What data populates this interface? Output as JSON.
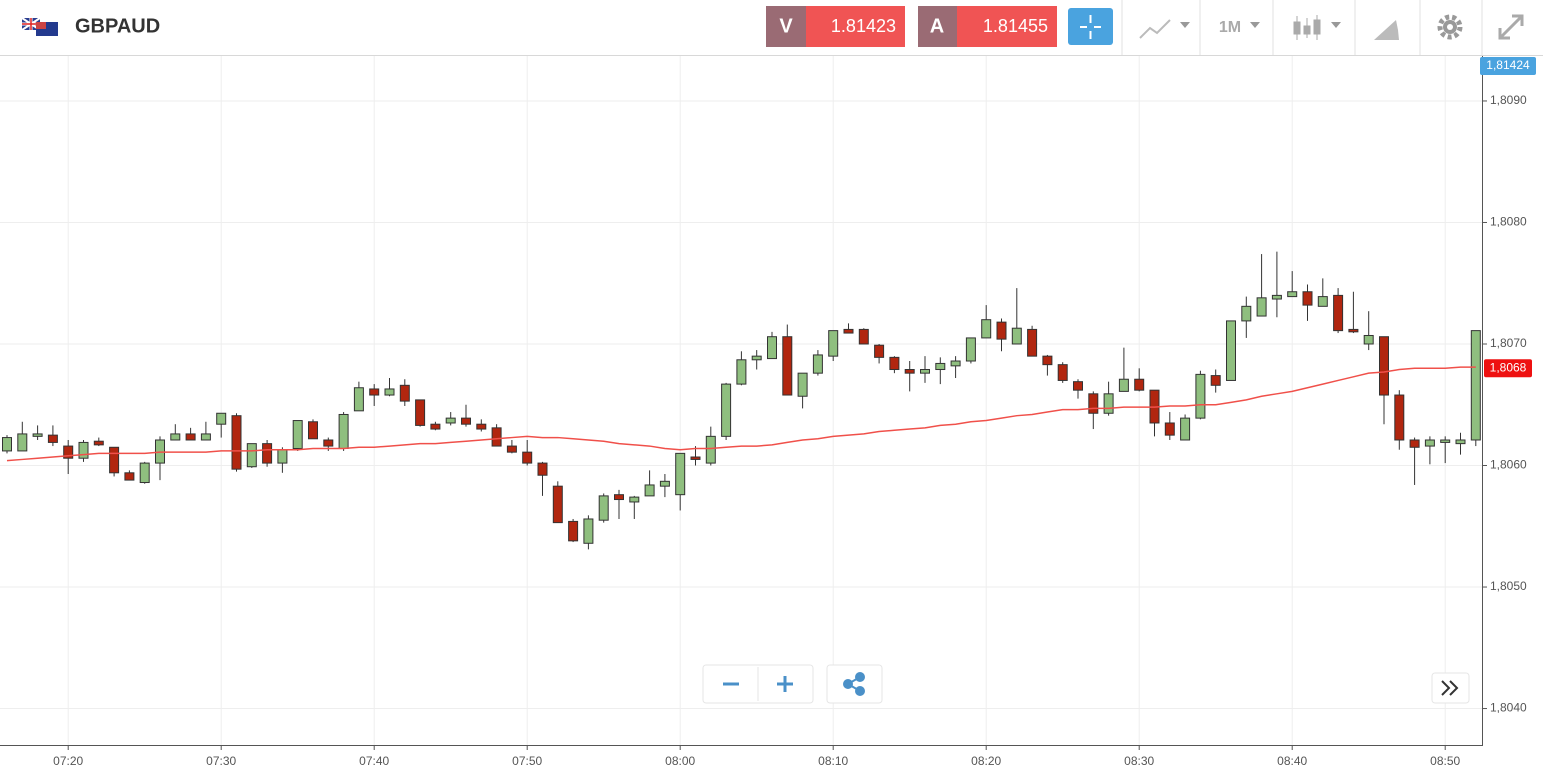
{
  "toolbar": {
    "symbol": "GBPAUD",
    "bid_label": "V",
    "bid": "1.81423",
    "ask_label": "A",
    "ask": "1.81455",
    "timeframe": "1M"
  },
  "chart_data": {
    "type": "candlestick",
    "categories": [
      null,
      null,
      null,
      null,
      "07:20",
      null,
      null,
      null,
      null,
      null,
      null,
      null,
      null,
      null,
      "07:30",
      null,
      null,
      null,
      null,
      null,
      null,
      null,
      null,
      null,
      "07:40",
      null,
      null,
      null,
      null,
      null,
      null,
      null,
      null,
      null,
      "07:50",
      null,
      null,
      null,
      null,
      null,
      null,
      null,
      null,
      null,
      "08:00",
      null,
      null,
      null,
      null,
      null,
      null,
      null,
      null,
      null,
      "08:10",
      null,
      null,
      null,
      null,
      null,
      null,
      null,
      null,
      null,
      "08:20",
      null,
      null,
      null,
      null,
      null,
      null,
      null,
      null,
      null,
      "08:30",
      null,
      null,
      null,
      null,
      null,
      null,
      null,
      null,
      null,
      "08:40",
      null,
      null,
      null,
      null,
      null,
      null,
      null,
      null,
      null,
      "08:50",
      null,
      null
    ],
    "open": [
      1.80612,
      1.80612,
      1.80624,
      1.80625,
      1.80616,
      1.80606,
      1.8062,
      1.80615,
      1.80594,
      1.80586,
      1.80602,
      1.80621,
      1.80626,
      1.80621,
      1.80634,
      1.80641,
      1.80599,
      1.80618,
      1.80602,
      1.80614,
      1.80636,
      1.80621,
      1.80614,
      1.80645,
      1.80663,
      1.80658,
      1.80666,
      1.80654,
      1.80634,
      1.80635,
      1.80639,
      1.80634,
      1.80631,
      1.80616,
      1.80611,
      1.80602,
      1.80583,
      1.80554,
      1.80536,
      1.80555,
      1.80576,
      1.8057,
      1.80575,
      1.80583,
      1.80576,
      1.80607,
      1.80602,
      1.80624,
      1.80667,
      1.80687,
      1.80688,
      1.80706,
      1.80657,
      1.80676,
      1.8069,
      1.80712,
      1.80712,
      1.80699,
      1.80689,
      1.80679,
      1.80676,
      1.80679,
      1.80682,
      1.80686,
      1.80705,
      1.80718,
      1.807,
      1.80712,
      1.8069,
      1.80683,
      1.80669,
      1.80659,
      1.80643,
      1.80661,
      1.80671,
      1.80662,
      1.80635,
      1.80621,
      1.80639,
      1.80674,
      1.8067,
      1.80719,
      1.80723,
      1.80737,
      1.80739,
      1.80743,
      1.80731,
      1.8074,
      1.80712,
      1.807,
      1.80706,
      1.80658,
      1.80621,
      1.80616,
      1.80619,
      1.80618,
      1.80621
    ],
    "high": [
      1.80625,
      1.80636,
      1.80633,
      1.80633,
      1.80621,
      1.80621,
      1.80623,
      1.80615,
      1.80596,
      1.80603,
      1.80624,
      1.80634,
      1.80631,
      1.80636,
      1.80643,
      1.80643,
      1.80618,
      1.80621,
      1.80615,
      1.80637,
      1.80638,
      1.80623,
      1.80644,
      1.80669,
      1.80667,
      1.80672,
      1.80671,
      1.80654,
      1.80636,
      1.80644,
      1.8065,
      1.80638,
      1.80634,
      1.80621,
      1.80621,
      1.80603,
      1.80587,
      1.80556,
      1.80559,
      1.80577,
      1.8058,
      1.80575,
      1.80596,
      1.80593,
      1.8061,
      1.80616,
      1.80632,
      1.80668,
      1.80694,
      1.80695,
      1.8071,
      1.80716,
      1.80676,
      1.80695,
      1.80711,
      1.80717,
      1.80713,
      1.807,
      1.8069,
      1.80686,
      1.8069,
      1.80689,
      1.8069,
      1.80705,
      1.80732,
      1.80721,
      1.80746,
      1.80715,
      1.80691,
      1.80685,
      1.80671,
      1.80661,
      1.80669,
      1.80697,
      1.8068,
      1.80662,
      1.80644,
      1.80642,
      1.80678,
      1.80679,
      1.80719,
      1.80739,
      1.80774,
      1.80776,
      1.8076,
      1.80749,
      1.80754,
      1.80746,
      1.80743,
      1.80727,
      1.80706,
      1.80662,
      1.80623,
      1.80624,
      1.80624,
      1.80627,
      1.80711
    ],
    "low": [
      1.8061,
      1.80612,
      1.80621,
      1.80616,
      1.80593,
      1.80603,
      1.80616,
      1.80591,
      1.80588,
      1.80585,
      1.80588,
      1.80621,
      1.80621,
      1.80621,
      1.80623,
      1.80595,
      1.80598,
      1.80599,
      1.80594,
      1.80612,
      1.80622,
      1.80612,
      1.80612,
      1.80645,
      1.80649,
      1.80657,
      1.80649,
      1.80632,
      1.80629,
      1.80633,
      1.80632,
      1.80628,
      1.80616,
      1.8061,
      1.806,
      1.80575,
      1.80553,
      1.80537,
      1.80531,
      1.80553,
      1.80556,
      1.80556,
      1.80575,
      1.80574,
      1.80563,
      1.806,
      1.806,
      1.80621,
      1.80666,
      1.80679,
      1.80688,
      1.80658,
      1.80647,
      1.80674,
      1.80686,
      1.80709,
      1.807,
      1.80684,
      1.80676,
      1.80661,
      1.80668,
      1.80667,
      1.80672,
      1.80684,
      1.80705,
      1.80694,
      1.807,
      1.8069,
      1.80674,
      1.80668,
      1.80655,
      1.8063,
      1.80641,
      1.80661,
      1.80661,
      1.80624,
      1.80621,
      1.80621,
      1.80638,
      1.8066,
      1.8067,
      1.80705,
      1.80723,
      1.80722,
      1.80739,
      1.80719,
      1.80731,
      1.80709,
      1.80709,
      1.80695,
      1.80634,
      1.80613,
      1.80584,
      1.80601,
      1.80602,
      1.80609,
      1.80616
    ],
    "close": [
      1.80623,
      1.80626,
      1.80626,
      1.80619,
      1.80606,
      1.80619,
      1.80617,
      1.80594,
      1.80588,
      1.80602,
      1.80621,
      1.80626,
      1.80621,
      1.80626,
      1.80643,
      1.80597,
      1.80618,
      1.80602,
      1.80613,
      1.80637,
      1.80622,
      1.80616,
      1.80642,
      1.80664,
      1.80658,
      1.80663,
      1.80653,
      1.80633,
      1.8063,
      1.80639,
      1.80634,
      1.8063,
      1.80616,
      1.80611,
      1.80602,
      1.80592,
      1.80553,
      1.80538,
      1.80556,
      1.80575,
      1.80572,
      1.80574,
      1.80584,
      1.80587,
      1.8061,
      1.80605,
      1.80624,
      1.80667,
      1.80687,
      1.8069,
      1.80706,
      1.80658,
      1.80676,
      1.80691,
      1.80711,
      1.80709,
      1.807,
      1.80689,
      1.80679,
      1.80676,
      1.80679,
      1.80684,
      1.80686,
      1.80705,
      1.8072,
      1.80704,
      1.80713,
      1.8069,
      1.80683,
      1.8067,
      1.80662,
      1.80643,
      1.80659,
      1.80671,
      1.80662,
      1.80635,
      1.80625,
      1.80639,
      1.80675,
      1.80666,
      1.80719,
      1.80731,
      1.80738,
      1.8074,
      1.80743,
      1.80732,
      1.80739,
      1.80711,
      1.8071,
      1.80707,
      1.80658,
      1.80621,
      1.80615,
      1.80621,
      1.80621,
      1.80621,
      1.80711
    ],
    "up_color": "#8fbf7f",
    "down_color": "#b1260f",
    "moving_average": {
      "color": "#f0504a",
      "values": [
        1.80604,
        1.80605,
        1.80606,
        1.80607,
        1.80608,
        1.80609,
        1.8061,
        1.8061,
        1.8061,
        1.8061,
        1.80611,
        1.80611,
        1.80611,
        1.80611,
        1.80612,
        1.80612,
        1.80612,
        1.80613,
        1.80613,
        1.80613,
        1.80614,
        1.80614,
        1.80614,
        1.80615,
        1.80615,
        1.80616,
        1.80617,
        1.80618,
        1.80618,
        1.80619,
        1.8062,
        1.80621,
        1.80622,
        1.80623,
        1.80624,
        1.80623,
        1.80623,
        1.80622,
        1.80621,
        1.8062,
        1.80618,
        1.80617,
        1.80616,
        1.80614,
        1.80613,
        1.80614,
        1.80614,
        1.80615,
        1.80616,
        1.80616,
        1.80617,
        1.80619,
        1.80621,
        1.80622,
        1.80624,
        1.80625,
        1.80626,
        1.80628,
        1.80629,
        1.8063,
        1.80631,
        1.80633,
        1.80634,
        1.80636,
        1.80637,
        1.80639,
        1.80641,
        1.80642,
        1.80644,
        1.80646,
        1.80646,
        1.80647,
        1.80647,
        1.80648,
        1.80648,
        1.80648,
        1.80649,
        1.80649,
        1.8065,
        1.8065,
        1.80652,
        1.80654,
        1.80657,
        1.80659,
        1.80661,
        1.80664,
        1.80667,
        1.8067,
        1.80673,
        1.80676,
        1.80677,
        1.80679,
        1.8068,
        1.8068,
        1.8068,
        1.80681,
        1.80681
      ]
    },
    "ylim": [
      1.8037,
      1.80937
    ],
    "yticks": [
      {
        "value": 1.804,
        "label": "1,8040"
      },
      {
        "value": 1.805,
        "label": "1,8050"
      },
      {
        "value": 1.806,
        "label": "1,8060"
      },
      {
        "value": 1.807,
        "label": "1,8070"
      },
      {
        "value": 1.808,
        "label": "1,8080"
      },
      {
        "value": 1.809,
        "label": "1,8090"
      }
    ],
    "grid": true,
    "price_tag": {
      "value": 1.81424,
      "label": "1,81424",
      "color": "#4aa3df"
    },
    "ma_tag": {
      "value": 1.8068,
      "label": "1,8068",
      "color": "#ee1111"
    }
  }
}
